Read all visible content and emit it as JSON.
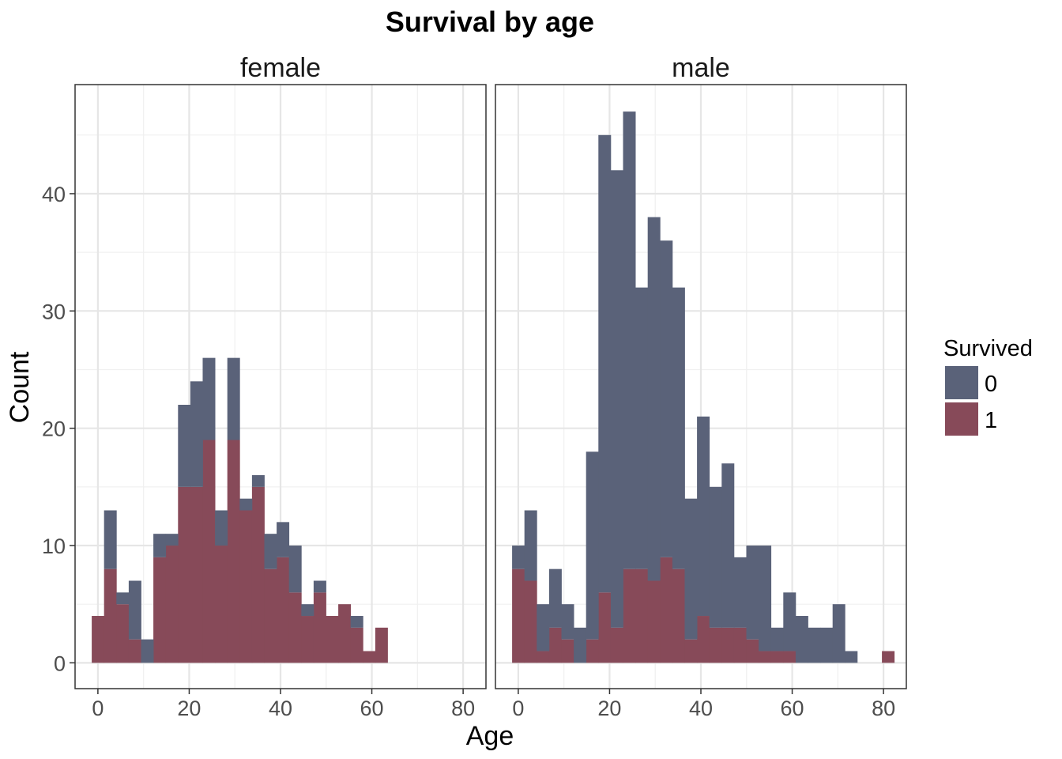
{
  "chart_data": {
    "type": "bar",
    "subtype": "stacked-histogram",
    "title": "Survival by age",
    "xlabel": "Age",
    "ylabel": "Count",
    "xlim": [
      -5,
      85
    ],
    "ylim": [
      -2.2,
      49.3
    ],
    "x_ticks": [
      0,
      20,
      40,
      60,
      80
    ],
    "y_ticks": [
      0,
      10,
      20,
      30,
      40
    ],
    "bin_width": 2.7,
    "bin_centers": [
      0,
      2.7,
      5.4,
      8.1,
      10.8,
      13.5,
      16.2,
      18.9,
      21.6,
      24.3,
      27.0,
      29.7,
      32.4,
      35.1,
      37.8,
      40.5,
      43.2,
      45.9,
      48.6,
      51.3,
      54.0,
      56.7,
      59.4,
      62.1,
      64.8,
      67.5,
      70.2,
      72.9,
      75.6,
      78.3,
      81.0
    ],
    "grid": true,
    "legend": {
      "title": "Survived",
      "position": "right",
      "entries": [
        {
          "label": "0",
          "color": "#5a6279"
        },
        {
          "label": "1",
          "color": "#874a59"
        }
      ]
    },
    "panels": [
      {
        "name": "female",
        "series": [
          {
            "name": "1",
            "values": [
              4,
              8,
              5,
              2,
              0,
              9,
              10,
              15,
              15,
              19,
              10,
              19,
              13,
              15,
              8,
              9,
              6,
              4,
              6,
              4,
              5,
              3,
              1,
              3,
              0,
              0,
              0,
              0,
              0,
              0,
              0
            ]
          },
          {
            "name": "0",
            "values": [
              0,
              5,
              1,
              5,
              2,
              2,
              1,
              7,
              9,
              7,
              3,
              7,
              1,
              1,
              3,
              3,
              4,
              1,
              1,
              0,
              0,
              1,
              0,
              0,
              0,
              0,
              0,
              0,
              0,
              0,
              0
            ]
          }
        ]
      },
      {
        "name": "male",
        "series": [
          {
            "name": "1",
            "values": [
              8,
              7,
              1,
              3,
              2,
              0,
              2,
              6,
              3,
              8,
              8,
              7,
              9,
              8,
              2,
              4,
              3,
              3,
              3,
              2,
              1,
              1,
              1,
              0,
              0,
              0,
              0,
              0,
              0,
              0,
              1
            ]
          },
          {
            "name": "0",
            "values": [
              2,
              6,
              4,
              5,
              3,
              3,
              16,
              39,
              39,
              39,
              24,
              31,
              27,
              24,
              12,
              17,
              12,
              14,
              6,
              8,
              9,
              2,
              5,
              4,
              3,
              3,
              5,
              1,
              0,
              0,
              0
            ]
          }
        ]
      }
    ]
  }
}
